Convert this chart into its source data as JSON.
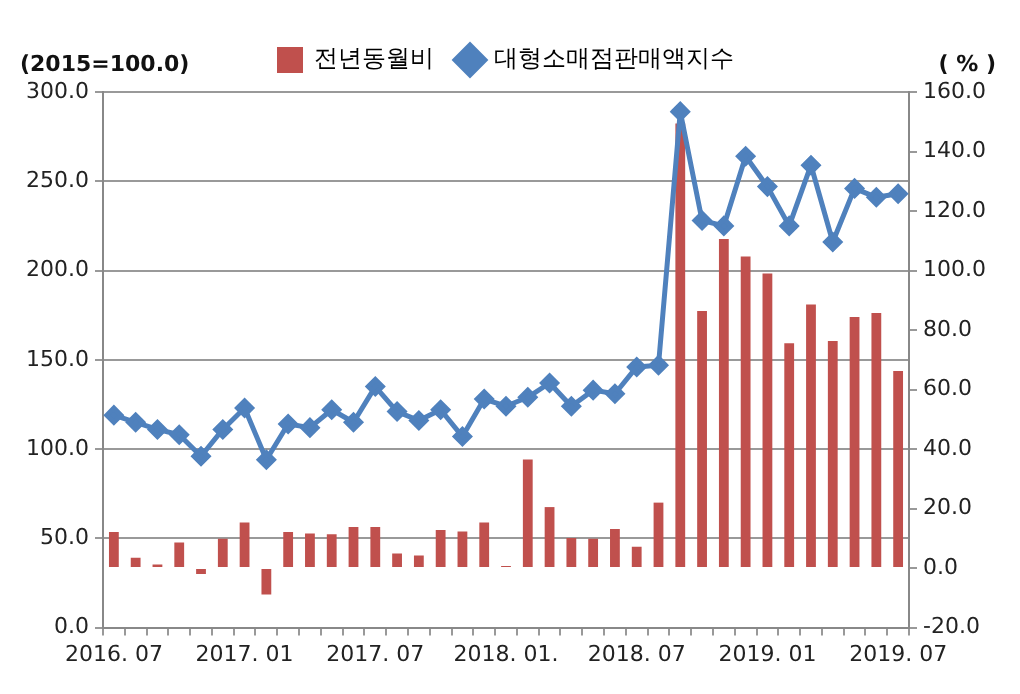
{
  "chart_data": {
    "type": "bar",
    "ylabel": "(2015=100.0)",
    "y2label": "( % )",
    "categories": [
      "2016. 07",
      null,
      null,
      null,
      null,
      null,
      "2017. 01",
      null,
      null,
      null,
      null,
      null,
      "2017. 07",
      null,
      null,
      null,
      null,
      null,
      "2018. 01.",
      null,
      null,
      null,
      null,
      null,
      "2018. 07",
      null,
      null,
      null,
      null,
      null,
      "2019. 01",
      null,
      null,
      null,
      null,
      null,
      "2019. 07"
    ],
    "series": [
      {
        "name": "전년동월비",
        "axis": "y2",
        "color": "#c0504d",
        "values": [
          12.1,
          3.5,
          1.2,
          8.6,
          -2,
          9.9,
          15.3,
          -8.9,
          12.1,
          11.6,
          11.4,
          13.8,
          13.8,
          4.9,
          4.2,
          12.8,
          12.3,
          15.3,
          0.7,
          36.5,
          20.5,
          10.1,
          9.9,
          13.1,
          7.2,
          22,
          149.4,
          86.4,
          110.6,
          104.7,
          99,
          75.6,
          88.6,
          76.3,
          84.4,
          85.7,
          66.2
        ]
      },
      {
        "name": "대형소매점판매액지수",
        "type": "line",
        "axis": "y",
        "color": "#4f81bd",
        "values": [
          119,
          115,
          111,
          108,
          96,
          111,
          123,
          94,
          114,
          112,
          122,
          115,
          135,
          121,
          116,
          122,
          107,
          128,
          124,
          129,
          137,
          124,
          133,
          131,
          146,
          147,
          289,
          228,
          225,
          264,
          247,
          225,
          259,
          216,
          246,
          241,
          243
        ]
      }
    ],
    "ylim": [
      0,
      300
    ],
    "yticks": [
      {
        "value": 0,
        "label": "0.0"
      },
      {
        "value": 50,
        "label": "50.0"
      },
      {
        "value": 100,
        "label": "100.0"
      },
      {
        "value": 150,
        "label": "150.0"
      },
      {
        "value": 200,
        "label": "200.0"
      },
      {
        "value": 250,
        "label": "250.0"
      },
      {
        "value": 300,
        "label": "300.0"
      }
    ],
    "y2lim": [
      -20,
      160
    ],
    "y2ticks": [
      {
        "value": -20,
        "label": "-20.0"
      },
      {
        "value": 0,
        "label": "0.0"
      },
      {
        "value": 20,
        "label": "20.0"
      },
      {
        "value": 40,
        "label": "40.0"
      },
      {
        "value": 60,
        "label": "60.0"
      },
      {
        "value": 80,
        "label": "80.0"
      },
      {
        "value": 100,
        "label": "100.0"
      },
      {
        "value": 120,
        "label": "120.0"
      },
      {
        "value": 140,
        "label": "140.0"
      },
      {
        "value": 160,
        "label": "160.0"
      }
    ],
    "grid": "y",
    "legend": "top",
    "marker": "diamond",
    "line_style": "solid"
  }
}
